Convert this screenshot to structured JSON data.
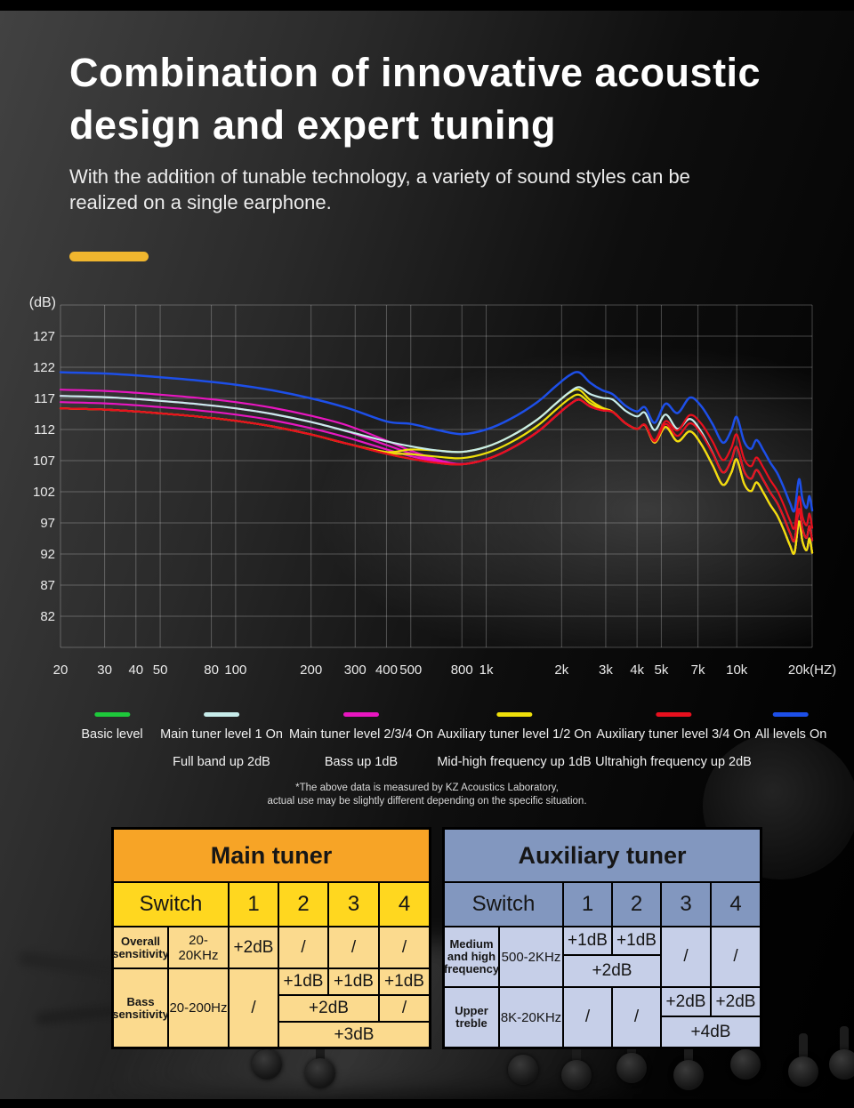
{
  "page": {
    "title_line1": "Combination of innovative acoustic",
    "title_line2": "design and expert tuning",
    "subtitle_line1": "With the addition of tunable technology, a variety of sound styles can be",
    "subtitle_line2": "realized on a single earphone.",
    "accent_color": "#F0B62E",
    "disclaimer_line1": "*The above data is measured by KZ Acoustics Laboratory,",
    "disclaimer_line2": "actual use may be slightly different depending on the specific situation."
  },
  "chart_data": {
    "type": "line",
    "ylabel": "(dB)",
    "yticks": [
      127,
      122,
      117,
      112,
      107,
      102,
      97,
      92,
      87,
      82
    ],
    "ylim": [
      77,
      132
    ],
    "x_scale": "log",
    "xlim": [
      20,
      20000
    ],
    "grid": true,
    "legend_position": "bottom",
    "xticks": [
      {
        "f": 20,
        "label": "20"
      },
      {
        "f": 30,
        "label": "30"
      },
      {
        "f": 40,
        "label": "40"
      },
      {
        "f": 50,
        "label": "50"
      },
      {
        "f": 80,
        "label": "80"
      },
      {
        "f": 100,
        "label": "100"
      },
      {
        "f": 200,
        "label": "200"
      },
      {
        "f": 300,
        "label": "300"
      },
      {
        "f": 400,
        "label": "400"
      },
      {
        "f": 500,
        "label": "500"
      },
      {
        "f": 800,
        "label": "800"
      },
      {
        "f": 1000,
        "label": "1k"
      },
      {
        "f": 2000,
        "label": "2k"
      },
      {
        "f": 3000,
        "label": "3k"
      },
      {
        "f": 4000,
        "label": "4k"
      },
      {
        "f": 5000,
        "label": "5k"
      },
      {
        "f": 7000,
        "label": "7k"
      },
      {
        "f": 10000,
        "label": "10k"
      },
      {
        "f": 20000,
        "label": "20k(HZ)"
      }
    ],
    "freqs": [
      20,
      30,
      40,
      50,
      70,
      100,
      140,
      200,
      280,
      400,
      500,
      650,
      800,
      1000,
      1250,
      1600,
      1900,
      2150,
      2350,
      2600,
      2900,
      3200,
      3600,
      4000,
      4300,
      4700,
      5200,
      5800,
      6500,
      7200,
      8000,
      8800,
      9500,
      10000,
      10700,
      11400,
      12000,
      12800,
      13600,
      14500,
      15400,
      16300,
      17000,
      17700,
      18300,
      19000,
      19500,
      20000
    ],
    "base_dB": [
      115.4,
      115.2,
      114.9,
      114.6,
      114.1,
      113.4,
      112.5,
      111.2,
      109.7,
      108.1,
      107.3,
      106.6,
      106.4,
      107.2,
      108.9,
      111.6,
      114.2,
      116.0,
      116.8,
      115.7,
      115.1,
      114.8,
      113.0,
      112.1,
      112.7,
      109.9,
      112.4,
      110.1,
      111.7,
      109.7,
      106.3,
      103.1,
      105.0,
      107.2,
      103.3,
      102.1,
      103.5,
      101.8,
      99.9,
      98.2,
      95.9,
      93.4,
      92.2,
      97.2,
      94.0,
      92.6,
      94.5,
      92.2
    ],
    "boost_bands": {
      "bass_hz": [
        250,
        900
      ],
      "mid_hz": [
        350,
        600,
        2000,
        3400
      ],
      "ultra_hz": [
        4000,
        9000
      ]
    },
    "series": [
      {
        "name": "Basic level",
        "sub": "",
        "color": "#1EC93B",
        "curves": [
          {
            "full": 0,
            "bass": 0,
            "mid": 0,
            "ultra": 0
          }
        ]
      },
      {
        "name": "Main tuner level 1 On",
        "sub": "Full band up 2dB",
        "color": "#C7ECEA",
        "curves": [
          {
            "full": 2,
            "bass": 0,
            "mid": 0,
            "ultra": 0
          }
        ]
      },
      {
        "name": "Main tuner level 2/3/4 On",
        "sub": "Bass up 1dB",
        "color": "#E816C0",
        "curves": [
          {
            "full": 0,
            "bass": 1,
            "mid": 0,
            "ultra": 0
          },
          {
            "full": 0,
            "bass": 2,
            "mid": 0,
            "ultra": 0
          },
          {
            "full": 0,
            "bass": 3,
            "mid": 0,
            "ultra": 0
          }
        ]
      },
      {
        "name": "Auxiliary tuner level 1/2 On",
        "sub": "Mid-high frequency up 1dB",
        "color": "#EFE00A",
        "curves": [
          {
            "full": 0,
            "bass": 0,
            "mid": 1,
            "ultra": 0
          },
          {
            "full": 0,
            "bass": 0,
            "mid": 2,
            "ultra": 0
          }
        ]
      },
      {
        "name": "Auxiliary tuner level 3/4 On",
        "sub": "Ultrahigh frequency up 2dB",
        "color": "#E8101E",
        "curves": [
          {
            "full": 0,
            "bass": 0,
            "mid": 0,
            "ultra": 2
          },
          {
            "full": 0,
            "bass": 0,
            "mid": 0,
            "ultra": 4
          }
        ]
      },
      {
        "name": "All levels On",
        "sub": "",
        "color": "#1D4FE8",
        "curves": [
          {
            "full": 2.8,
            "bass": 3,
            "mid": 2,
            "ultra": 4
          }
        ]
      }
    ],
    "draw_order": [
      0,
      2,
      3,
      1,
      4,
      5
    ]
  },
  "main_tuner": {
    "title": "Main tuner",
    "switch_label": "Switch",
    "col1": "1",
    "col2": "2",
    "col3": "3",
    "col4": "4",
    "overall_label": "Overall sensitivity",
    "overall_range": "20-20KHz",
    "overall_1": "+2dB",
    "overall_2": "/",
    "overall_3": "/",
    "overall_4": "/",
    "bass_label": "Bass sensitivity",
    "bass_range": "20-200Hz",
    "bass_1": "/",
    "bass_r1c2": "+1dB",
    "bass_r1c3": "+1dB",
    "bass_r1c4": "+1dB",
    "bass_r2c23": "+2dB",
    "bass_r2c4": "/",
    "bass_r3c234": "+3dB"
  },
  "aux_tuner": {
    "title": "Auxiliary tuner",
    "switch_label": "Switch",
    "col1": "1",
    "col2": "2",
    "col3": "3",
    "col4": "4",
    "med_label": "Medium and high frequency",
    "med_range": "500-2KHz",
    "med_1": "+1dB",
    "med_2": "+1dB",
    "med_3": "/",
    "med_4": "/",
    "med_12": "+2dB",
    "treble_label": "Upper treble",
    "treble_range": "8K-20KHz",
    "treble_1": "/",
    "treble_2": "/",
    "treble_3": "+2dB",
    "treble_4": "+2dB",
    "treble_34": "+4dB"
  }
}
